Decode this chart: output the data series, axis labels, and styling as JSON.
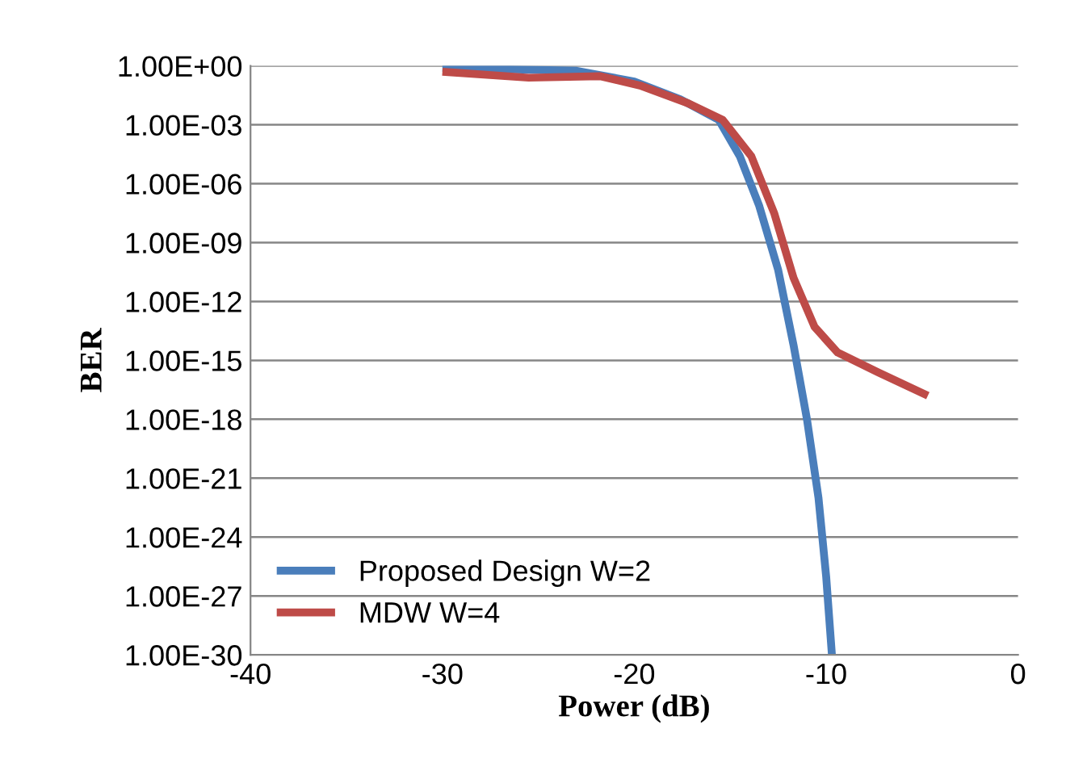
{
  "chart_data": {
    "type": "line",
    "xlabel": "Power (dB)",
    "ylabel": "BER",
    "log": "y",
    "xlim": [
      -40,
      0
    ],
    "xticks": [
      -40,
      -30,
      -20,
      -10,
      0
    ],
    "ylim": [
      1e-30,
      1
    ],
    "yticks": [
      {
        "value": 1,
        "label": "1.00E+00"
      },
      {
        "value": 0.001,
        "label": "1.00E-03"
      },
      {
        "value": 1e-06,
        "label": "1.00E-06"
      },
      {
        "value": 1e-09,
        "label": "1.00E-09"
      },
      {
        "value": 1e-12,
        "label": "1.00E-12"
      },
      {
        "value": 1e-15,
        "label": "1.00E-15"
      },
      {
        "value": 1e-18,
        "label": "1.00E-18"
      },
      {
        "value": 1e-21,
        "label": "1.00E-21"
      },
      {
        "value": 1e-24,
        "label": "1.00E-24"
      },
      {
        "value": 1e-27,
        "label": "1.00E-27"
      },
      {
        "value": 1e-30,
        "label": "1.00E-30"
      }
    ],
    "grid": "y",
    "legend": "lower left",
    "marker": "none",
    "series": [
      {
        "name": "Proposed Design W=2",
        "color": "#4a7ebb",
        "x": [
          -30,
          -23,
          -20,
          -17.6,
          -15.6,
          -14.5,
          -13.5,
          -12.5,
          -11.7,
          -11,
          -10.4,
          -10,
          -9.7
        ],
        "values": [
          0.8,
          0.56,
          0.16,
          0.02,
          0.0018,
          2.5e-05,
          8e-08,
          4e-11,
          6e-15,
          1e-18,
          1e-22,
          1e-26,
          1e-30
        ]
      },
      {
        "name": "MDW W=4",
        "color": "#be4b48",
        "x": [
          -30,
          -25.5,
          -21.8,
          -19.7,
          -17.2,
          -15.4,
          -13.9,
          -12.7,
          -11.7,
          -10.6,
          -9.4,
          -7.3,
          -4.7
        ],
        "values": [
          0.5,
          0.25,
          0.3,
          0.1,
          0.0125,
          0.0018,
          2.5e-05,
          3e-08,
          1.6e-11,
          5e-14,
          2.5e-15,
          2.5e-16,
          1.6e-17
        ]
      }
    ]
  }
}
